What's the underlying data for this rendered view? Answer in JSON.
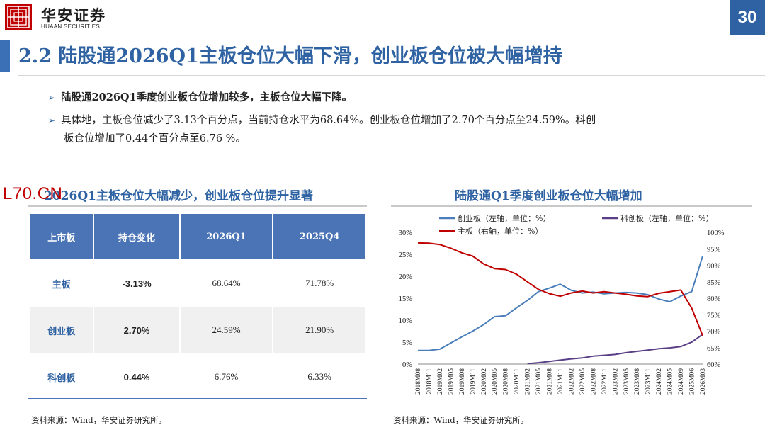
{
  "header": {
    "brand_cn": "华安证券",
    "brand_en": "HUAAN SECURITIES",
    "page_number": "30",
    "accent_color": "#2e62a2"
  },
  "title": "2.2 陆股通2026Q1主板仓位大幅下滑，创业板仓位被大幅增持",
  "bullets": [
    "陆股通2026Q1季度创业板仓位增加较多，主板仓位大幅下降。",
    "具体地，主板仓位减少了3.13个百分点，当前持仓水平为68.64%。创业板仓位增加了2.70个百分点至24.59%。科创",
    "板仓位增加了0.44个百分点至6.76 %。"
  ],
  "watermark": "L70.CN",
  "left_section": {
    "title": "2026Q1主板仓位大幅减少，创业板仓位提升显著",
    "table": {
      "headers": [
        "上市板",
        "持仓变化",
        "2026Q1",
        "2025Q4"
      ],
      "rows": [
        [
          "主板",
          "-3.13%",
          "68.64%",
          "71.78%"
        ],
        [
          "创业板",
          "2.70%",
          "24.59%",
          "21.90%"
        ],
        [
          "科创板",
          "0.44%",
          "6.76%",
          "6.33%"
        ]
      ]
    },
    "source": "资料来源：Wind，华安证券研究所。"
  },
  "right_section": {
    "title": "陆股通Q1季度创业板仓位大幅增加",
    "source": "资料来源：Wind，华安证券研究所。"
  },
  "chart_data": {
    "type": "line",
    "x": [
      "2018M08",
      "2018M11",
      "2019M02",
      "2019M05",
      "2019M08",
      "2019M11",
      "2020M02",
      "2020M05",
      "2020M08",
      "2020M11",
      "2021M02",
      "2021M05",
      "2021M08",
      "2021M11",
      "2022M02",
      "2022M05",
      "2022M08",
      "2022M11",
      "2023M02",
      "2023M05",
      "2023M08",
      "2023M11",
      "2024M02",
      "2024M05",
      "2024M09",
      "2025M06",
      "2026M03"
    ],
    "y_left": {
      "range": [
        0,
        30
      ],
      "ticks": [
        "0%",
        "5%",
        "10%",
        "15%",
        "20%",
        "25%",
        "30%"
      ]
    },
    "y_right": {
      "range": [
        60,
        100
      ],
      "ticks": [
        "60%",
        "65%",
        "70%",
        "75%",
        "80%",
        "85%",
        "90%",
        "95%",
        "100%"
      ]
    },
    "series": [
      {
        "name": "创业板（左轴，单位：%）",
        "axis": "left",
        "color": "#4a7ebb",
        "values": [
          3.1,
          3.1,
          3.4,
          4.8,
          6.2,
          7.5,
          9.0,
          10.8,
          11.0,
          12.8,
          14.5,
          16.5,
          17.3,
          18.2,
          16.8,
          16.2,
          16.4,
          16.0,
          16.2,
          16.3,
          16.2,
          15.8,
          14.8,
          14.2,
          15.5,
          16.5,
          24.59
        ]
      },
      {
        "name": "科创板（左轴，单位：%）",
        "axis": "left",
        "color": "#5b3f86",
        "values": [
          null,
          null,
          null,
          null,
          null,
          null,
          null,
          null,
          null,
          null,
          0.1,
          0.3,
          0.6,
          0.9,
          1.2,
          1.4,
          1.8,
          2.0,
          2.2,
          2.6,
          2.9,
          3.2,
          3.5,
          3.7,
          4.0,
          5.0,
          6.76
        ]
      },
      {
        "name": "主板（右轴，单位：%）",
        "axis": "right",
        "color": "#c00000",
        "values": [
          96.8,
          96.7,
          96.3,
          95.2,
          93.8,
          92.8,
          90.4,
          89.0,
          88.7,
          87.3,
          85.0,
          82.7,
          81.4,
          80.6,
          81.6,
          82.2,
          81.6,
          82.0,
          81.6,
          81.2,
          80.7,
          80.5,
          81.5,
          82.0,
          82.5,
          77.0,
          68.64
        ]
      }
    ],
    "grid": false,
    "legend_position": "top"
  }
}
